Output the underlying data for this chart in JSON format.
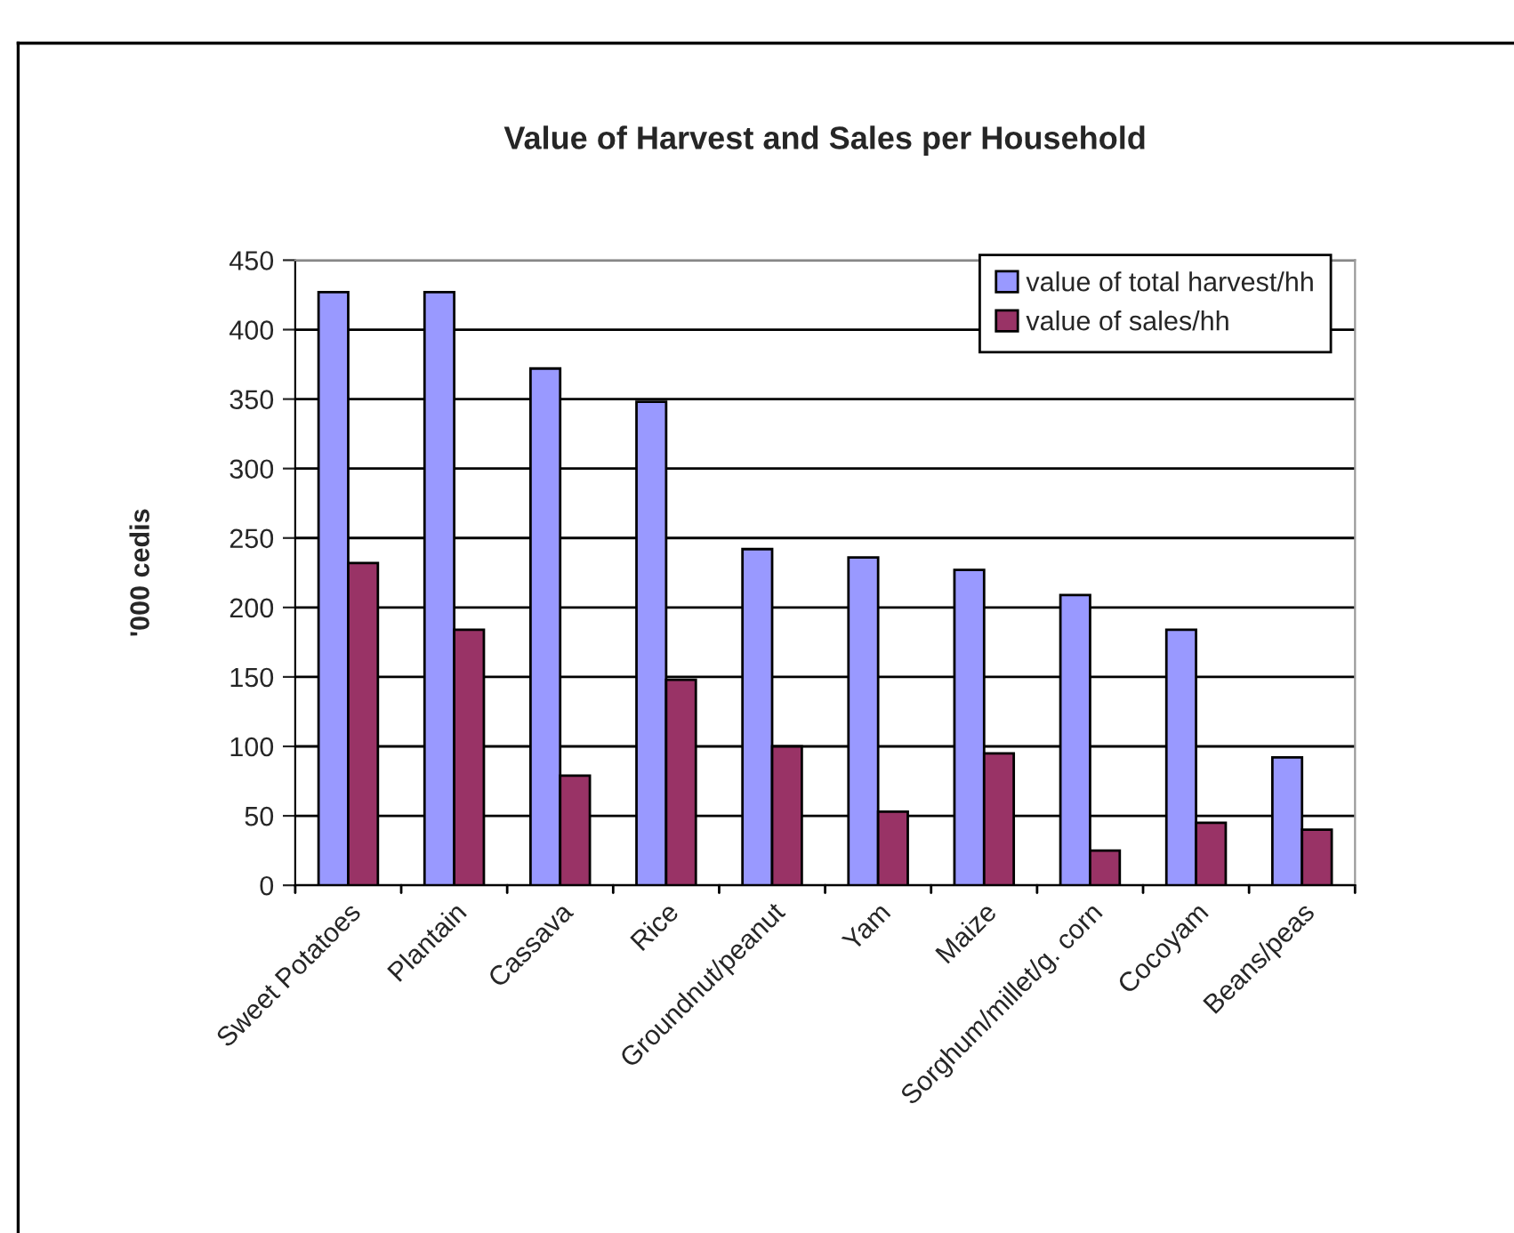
{
  "chart_data": {
    "type": "bar",
    "title": "Value of Harvest and Sales per Household",
    "ylabel": "'000 cedis",
    "categories": [
      "Sweet Potatoes",
      "Plantain",
      "Cassava",
      "Rice",
      "Groundnut/peanut",
      "Yam",
      "Maize",
      "Sorghum/millet/g. corn",
      "Cocoyam",
      "Beans/peas"
    ],
    "series": [
      {
        "name": "value of total harvest/hh",
        "color": "#9999ff",
        "values": [
          427,
          427,
          372,
          348,
          242,
          236,
          227,
          209,
          184,
          92
        ]
      },
      {
        "name": "value of sales/hh",
        "color": "#993366",
        "values": [
          232,
          184,
          79,
          148,
          100,
          53,
          95,
          25,
          45,
          40
        ]
      }
    ],
    "ylim": [
      0,
      450
    ],
    "yticks": [
      0,
      50,
      100,
      150,
      200,
      250,
      300,
      350,
      400,
      450
    ],
    "grid": "y",
    "legend": "top right"
  }
}
